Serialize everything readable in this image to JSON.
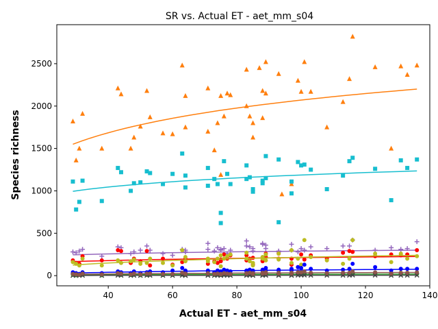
{
  "chart_data": {
    "type": "scatter",
    "title": "SR vs. Actual ET - aet_mm_s04",
    "xlabel": "Actual ET - aet_mm_s04",
    "ylabel": "Species richness",
    "xlim": [
      24,
      140
    ],
    "ylim": [
      -120,
      2960
    ],
    "xticks": [
      40,
      60,
      80,
      100,
      120,
      140
    ],
    "yticks": [
      0,
      500,
      1000,
      1500,
      2000,
      2500
    ],
    "grid": false,
    "legend": "none",
    "series": [
      {
        "color": "#ff7f0e",
        "marker": "triangle",
        "x": [
          29,
          30,
          31,
          32,
          38,
          43,
          44,
          47,
          48,
          50,
          52,
          53,
          57,
          60,
          63,
          64,
          64,
          71,
          71,
          73,
          74,
          75,
          75,
          76,
          77,
          78,
          83,
          83,
          84,
          85,
          85,
          87,
          88,
          88,
          89,
          89,
          93,
          94,
          97,
          99,
          100,
          101,
          103,
          108,
          113,
          115,
          116,
          123,
          128,
          131,
          133,
          136
        ],
        "y": [
          1820,
          1360,
          1500,
          1910,
          1500,
          2210,
          2140,
          1500,
          1630,
          1760,
          2180,
          1870,
          1680,
          1670,
          2480,
          2120,
          1750,
          2210,
          1700,
          1480,
          1800,
          2120,
          1190,
          1880,
          2150,
          2130,
          2000,
          2430,
          1880,
          1800,
          1630,
          2450,
          2180,
          1860,
          2150,
          2520,
          2380,
          960,
          1080,
          2300,
          2170,
          2520,
          2170,
          1750,
          2050,
          2320,
          2820,
          2460,
          1500,
          2470,
          2370,
          2480
        ],
        "fit": [
          1550,
          2200
        ]
      },
      {
        "color": "#17becf",
        "marker": "square",
        "x": [
          29,
          30,
          31,
          32,
          38,
          43,
          44,
          47,
          48,
          50,
          52,
          53,
          57,
          60,
          63,
          64,
          64,
          71,
          71,
          73,
          74,
          75,
          75,
          76,
          77,
          78,
          83,
          83,
          84,
          85,
          85,
          88,
          88,
          89,
          89,
          93,
          93,
          97,
          97,
          99,
          100,
          101,
          103,
          108,
          113,
          115,
          116,
          123,
          128,
          131,
          133,
          136
        ],
        "y": [
          1110,
          780,
          870,
          1120,
          880,
          1270,
          1220,
          1000,
          1090,
          1100,
          1230,
          1210,
          1080,
          1200,
          1440,
          1180,
          1040,
          1270,
          1060,
          1140,
          1080,
          740,
          620,
          1350,
          1200,
          1080,
          1300,
          1140,
          1160,
          1020,
          990,
          1120,
          1090,
          1150,
          1410,
          630,
          1370,
          1110,
          970,
          1340,
          1300,
          1310,
          1250,
          1020,
          1180,
          1350,
          1390,
          1260,
          890,
          1360,
          1270,
          1370
        ],
        "fit": [
          995,
          1235
        ]
      },
      {
        "color": "#9467bd",
        "marker": "plus",
        "x": [
          29,
          30,
          31,
          32,
          38,
          43,
          44,
          47,
          48,
          50,
          52,
          53,
          57,
          60,
          63,
          64,
          64,
          71,
          71,
          73,
          74,
          75,
          75,
          76,
          77,
          78,
          83,
          83,
          84,
          85,
          85,
          88,
          88,
          89,
          89,
          93,
          93,
          97,
          97,
          99,
          100,
          101,
          103,
          108,
          113,
          115,
          116,
          123,
          128,
          131,
          133,
          136
        ],
        "y": [
          280,
          270,
          290,
          310,
          230,
          340,
          330,
          260,
          280,
          300,
          350,
          300,
          260,
          240,
          310,
          300,
          280,
          380,
          310,
          290,
          330,
          310,
          300,
          320,
          260,
          300,
          350,
          410,
          340,
          320,
          290,
          370,
          380,
          320,
          360,
          290,
          280,
          300,
          370,
          280,
          320,
          300,
          340,
          320,
          350,
          350,
          420,
          300,
          330,
          310,
          320,
          400
        ],
        "fit": [
          245,
          300
        ]
      },
      {
        "color": "#ff0000",
        "marker": "circle",
        "x": [
          29,
          30,
          31,
          32,
          38,
          43,
          44,
          47,
          48,
          50,
          52,
          53,
          57,
          60,
          63,
          64,
          64,
          71,
          71,
          73,
          74,
          75,
          75,
          76,
          77,
          78,
          83,
          83,
          84,
          85,
          85,
          88,
          88,
          89,
          89,
          93,
          93,
          97,
          97,
          99,
          100,
          101,
          103,
          108,
          113,
          115,
          116,
          123,
          128,
          131,
          133,
          136
        ],
        "y": [
          180,
          150,
          140,
          230,
          180,
          300,
          290,
          150,
          200,
          170,
          290,
          120,
          200,
          130,
          160,
          200,
          180,
          190,
          140,
          170,
          150,
          190,
          170,
          250,
          200,
          240,
          180,
          240,
          200,
          210,
          130,
          180,
          170,
          220,
          260,
          200,
          260,
          130,
          200,
          100,
          250,
          190,
          240,
          200,
          270,
          290,
          280,
          230,
          250,
          240,
          250,
          300
        ],
        "fit": [
          165,
          225
        ]
      },
      {
        "color": "#bcbd22",
        "marker": "circle",
        "x": [
          29,
          30,
          31,
          32,
          38,
          43,
          44,
          47,
          48,
          50,
          52,
          53,
          57,
          60,
          63,
          64,
          64,
          71,
          71,
          73,
          74,
          75,
          75,
          76,
          77,
          78,
          83,
          83,
          84,
          85,
          85,
          88,
          88,
          89,
          89,
          93,
          93,
          97,
          97,
          99,
          100,
          101,
          103,
          108,
          113,
          115,
          116,
          123,
          128,
          131,
          133,
          136
        ],
        "y": [
          160,
          140,
          120,
          200,
          120,
          180,
          150,
          170,
          190,
          140,
          150,
          200,
          150,
          120,
          300,
          220,
          170,
          200,
          170,
          160,
          200,
          240,
          110,
          200,
          230,
          250,
          270,
          200,
          170,
          150,
          120,
          200,
          220,
          180,
          250,
          190,
          260,
          150,
          300,
          200,
          130,
          420,
          220,
          180,
          140,
          200,
          420,
          260,
          160,
          260,
          200,
          230
        ],
        "fit": [
          125,
          240
        ]
      },
      {
        "color": "#0000ff",
        "marker": "circle",
        "x": [
          29,
          30,
          31,
          32,
          38,
          43,
          44,
          47,
          48,
          50,
          52,
          53,
          57,
          60,
          63,
          64,
          64,
          71,
          71,
          73,
          74,
          75,
          75,
          76,
          77,
          78,
          83,
          83,
          84,
          85,
          85,
          88,
          88,
          89,
          89,
          93,
          93,
          97,
          97,
          99,
          100,
          101,
          103,
          108,
          113,
          115,
          116,
          123,
          128,
          131,
          133,
          136
        ],
        "y": [
          40,
          30,
          20,
          40,
          30,
          50,
          40,
          30,
          50,
          30,
          40,
          50,
          40,
          60,
          90,
          60,
          40,
          60,
          50,
          40,
          60,
          50,
          30,
          70,
          60,
          50,
          60,
          50,
          70,
          60,
          40,
          70,
          60,
          60,
          90,
          60,
          70,
          60,
          80,
          100,
          90,
          130,
          80,
          60,
          70,
          80,
          140,
          100,
          60,
          80,
          80,
          80
        ],
        "fit": [
          30,
          75
        ]
      },
      {
        "color": "#2ca02c",
        "marker": "circle",
        "x": [
          29,
          30,
          31,
          32,
          38,
          43,
          44,
          47,
          48,
          50,
          52,
          53,
          57,
          60,
          63,
          64,
          64,
          71,
          71,
          73,
          74,
          75,
          75,
          76,
          77,
          78,
          83,
          83,
          84,
          85,
          85,
          88,
          88,
          89,
          89,
          93,
          93,
          97,
          97,
          99,
          100,
          101,
          103,
          108,
          113,
          115,
          116,
          123,
          128,
          131,
          133,
          136
        ],
        "y": [
          10,
          5,
          8,
          12,
          5,
          15,
          10,
          8,
          12,
          6,
          10,
          12,
          8,
          10,
          15,
          12,
          10,
          15,
          12,
          10,
          12,
          10,
          8,
          14,
          12,
          10,
          14,
          12,
          15,
          14,
          10,
          15,
          12,
          14,
          18,
          12,
          15,
          12,
          16,
          20,
          18,
          22,
          16,
          14,
          15,
          16,
          22,
          18,
          12,
          16,
          16,
          18
        ],
        "fit": [
          8,
          18
        ]
      },
      {
        "color": "#444444",
        "marker": "x",
        "x": [
          29,
          30,
          31,
          32,
          38,
          43,
          44,
          47,
          48,
          50,
          52,
          53,
          57,
          60,
          63,
          64,
          64,
          71,
          71,
          73,
          74,
          75,
          75,
          76,
          77,
          78,
          83,
          83,
          84,
          85,
          85,
          88,
          88,
          89,
          89,
          93,
          93,
          97,
          97,
          99,
          100,
          101,
          103,
          108,
          113,
          115,
          116,
          123,
          128,
          131,
          133,
          136
        ],
        "y": [
          2,
          1,
          2,
          3,
          1,
          4,
          3,
          2,
          3,
          1,
          3,
          3,
          2,
          2,
          4,
          3,
          2,
          4,
          3,
          2,
          3,
          2,
          2,
          4,
          3,
          2,
          4,
          3,
          4,
          4,
          2,
          4,
          3,
          4,
          5,
          3,
          4,
          3,
          4,
          5,
          5,
          6,
          4,
          4,
          4,
          4,
          6,
          5,
          3,
          4,
          4,
          5
        ],
        "fit": [
          2,
          5
        ]
      },
      {
        "color": "#8c564b",
        "marker": "circle",
        "x": [
          29,
          30,
          31,
          32,
          38,
          43,
          44,
          47,
          48,
          50,
          52,
          53,
          57,
          60,
          63,
          64,
          64,
          71,
          71,
          73,
          74,
          75,
          75,
          76,
          77,
          78,
          83,
          83,
          84,
          85,
          85,
          88,
          88,
          89,
          89,
          93,
          93,
          97,
          97,
          99,
          100,
          101,
          103,
          108,
          113,
          115,
          116,
          123,
          128,
          131,
          133,
          136
        ],
        "y": [
          20,
          15,
          10,
          25,
          15,
          30,
          25,
          15,
          25,
          15,
          25,
          25,
          20,
          20,
          35,
          25,
          20,
          30,
          25,
          20,
          25,
          20,
          15,
          30,
          25,
          20,
          30,
          25,
          35,
          30,
          20,
          35,
          25,
          30,
          40,
          25,
          35,
          25,
          35,
          40,
          40,
          50,
          35,
          30,
          35,
          35,
          50,
          40,
          25,
          35,
          35,
          40
        ],
        "fit": [
          15,
          38
        ]
      }
    ]
  }
}
